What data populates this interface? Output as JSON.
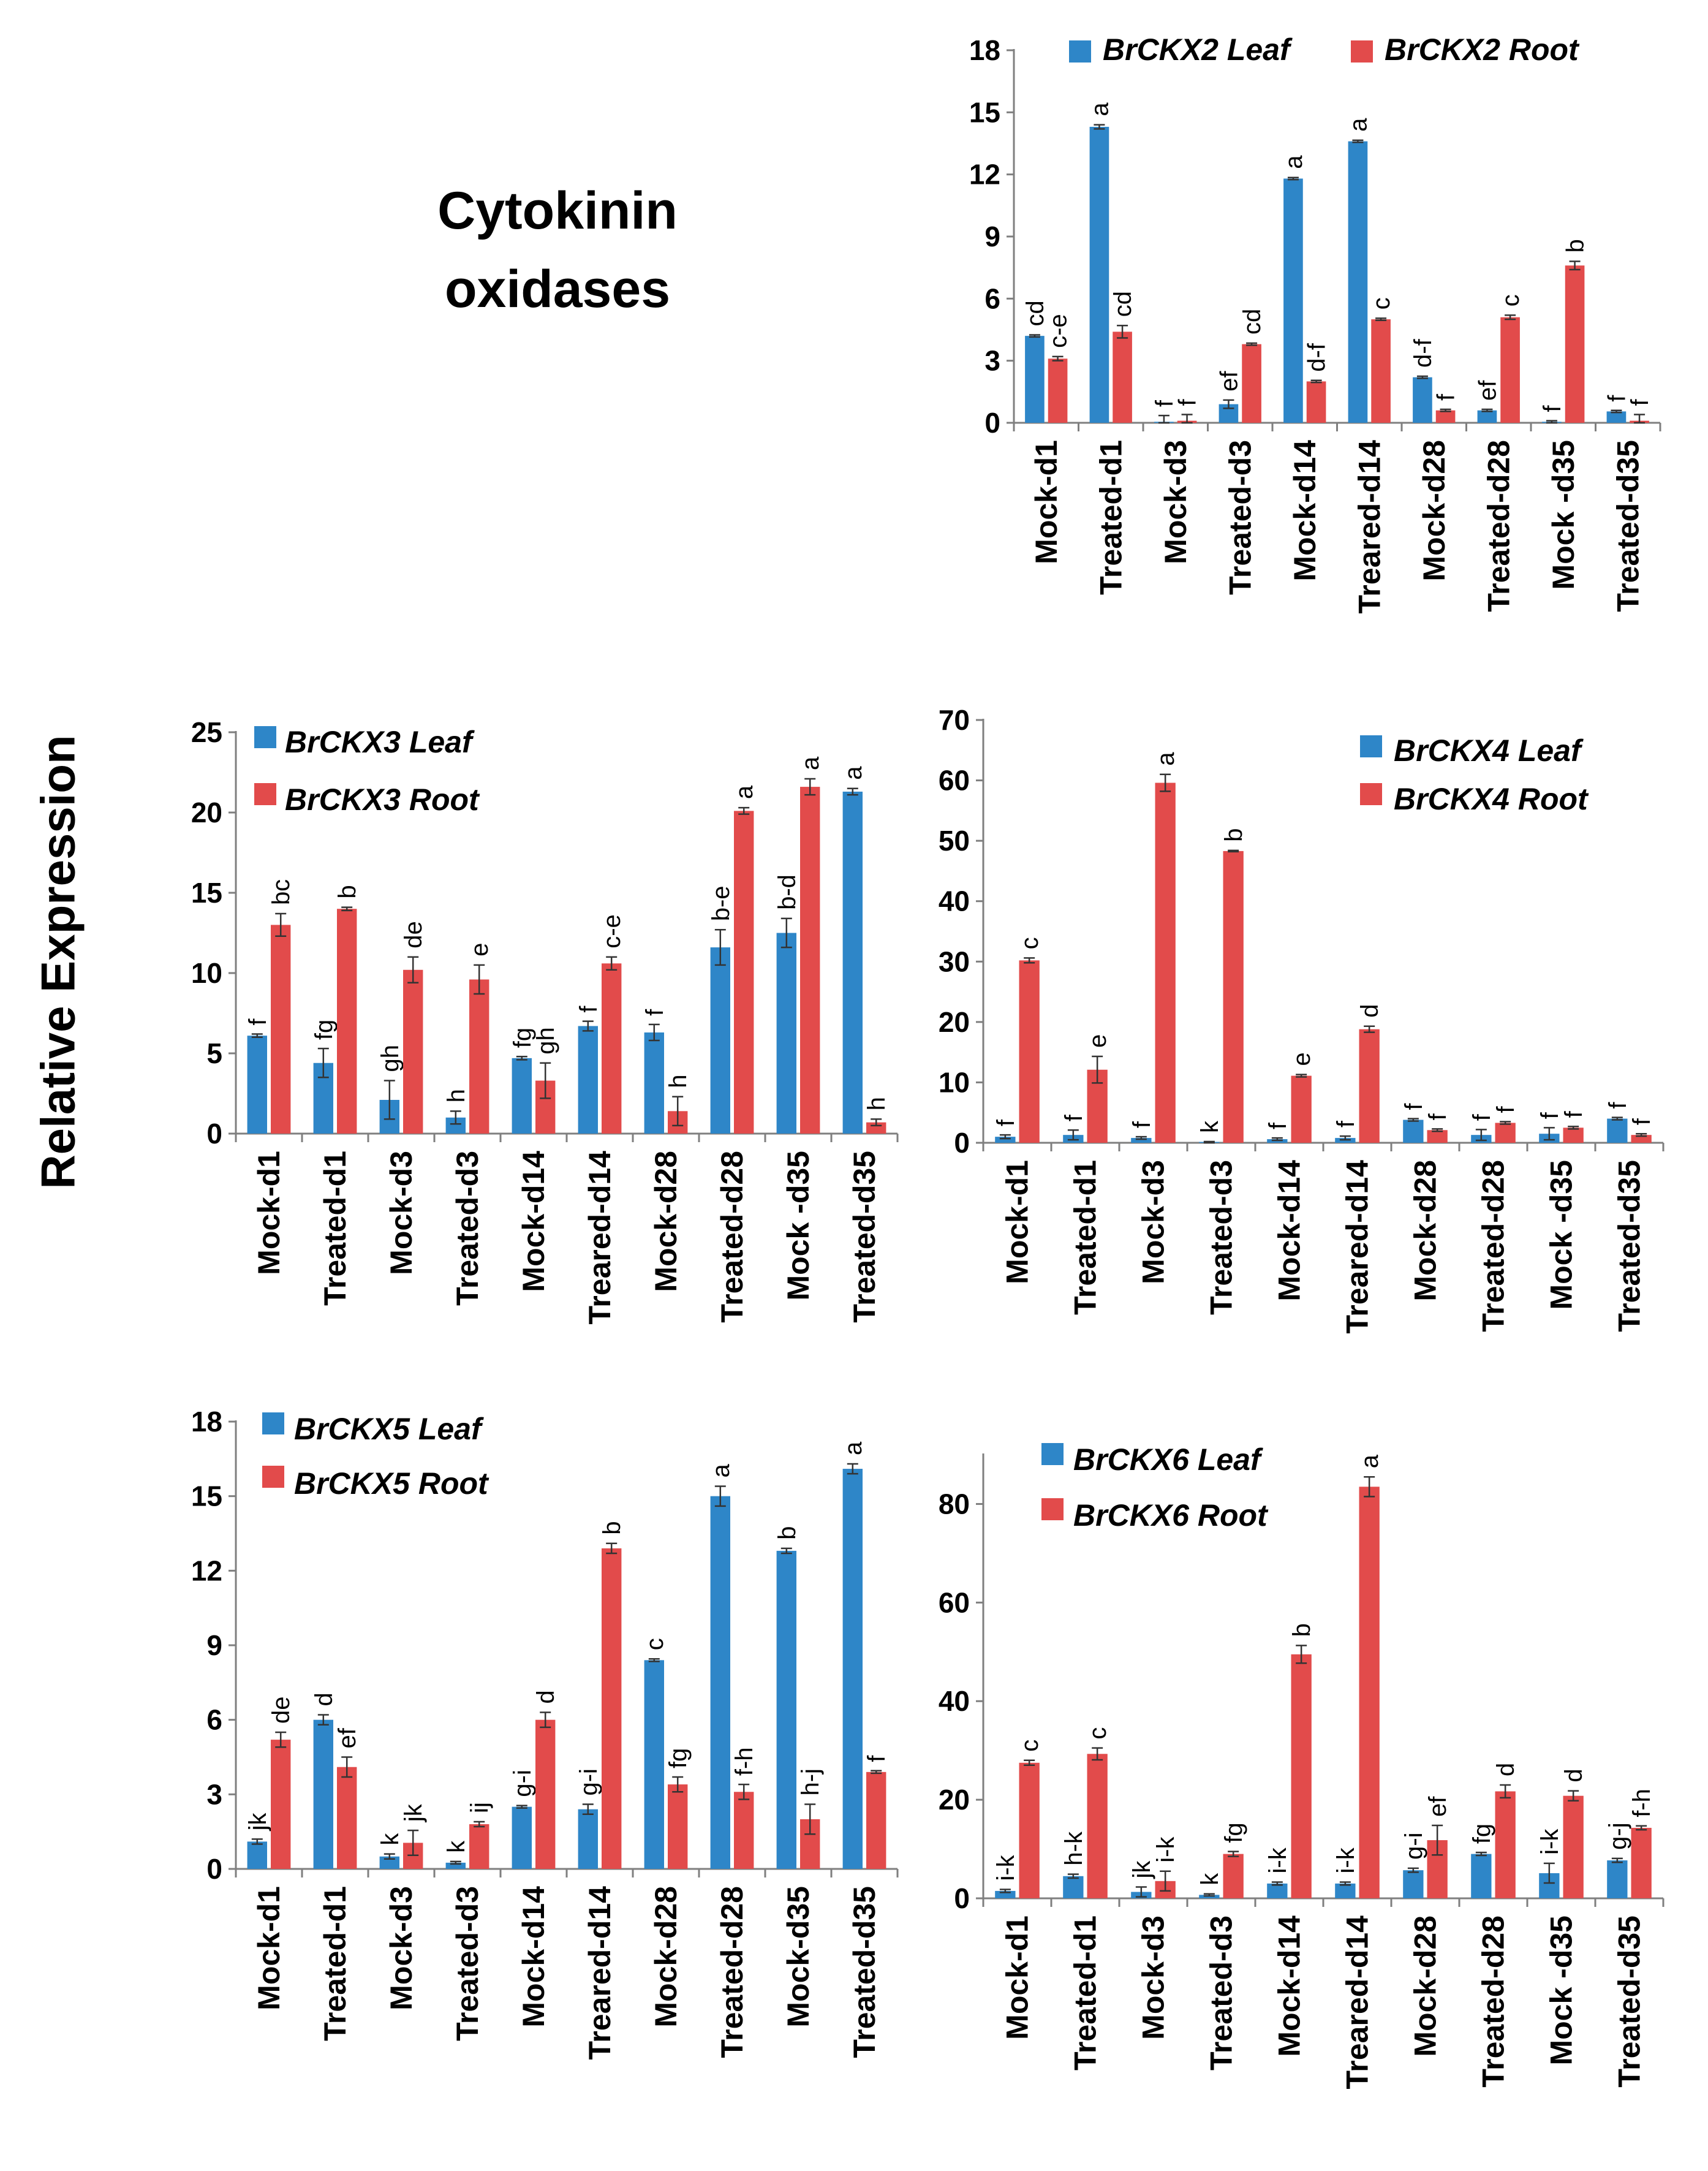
{
  "figure": {
    "title_line1": "Cytokinin",
    "title_line2": "oxidases",
    "ylabel": "Relative Expression"
  },
  "colors": {
    "leaf": "#2E86C8",
    "root": "#E24B4B",
    "axis": "#7f7f7f",
    "error": "#333333"
  },
  "chart_data": [
    {
      "id": "ckx2",
      "type": "bar",
      "title": "",
      "xlabel": "",
      "ylabel": "",
      "ylim": [
        0,
        18
      ],
      "yticks": [
        0,
        3,
        6,
        9,
        12,
        15,
        18
      ],
      "legend_position": "top",
      "categories": [
        "Mock-d1",
        "Treated-d1",
        "Mock-d3",
        "Treated-d3",
        "Mock-d14",
        "Treared-d14",
        "Mock-d28",
        "Treated-d28",
        "Mock -d35",
        "Treated-d35"
      ],
      "series": [
        {
          "name": "BrCKX2 Leaf",
          "values": [
            4.2,
            14.3,
            0.05,
            0.9,
            11.8,
            13.6,
            2.2,
            0.6,
            0.05,
            0.55
          ],
          "errors": [
            0.05,
            0.1,
            0.3,
            0.2,
            0.05,
            0.05,
            0.05,
            0.05,
            0.05,
            0.05
          ],
          "labels": [
            "cd",
            "a",
            "f",
            "ef",
            "a",
            "a",
            "d-f",
            "ef",
            "f",
            "f"
          ]
        },
        {
          "name": "BrCKX2 Root",
          "values": [
            3.1,
            4.4,
            0.1,
            3.8,
            2.0,
            5.0,
            0.6,
            5.1,
            7.6,
            0.1
          ],
          "errors": [
            0.1,
            0.3,
            0.3,
            0.05,
            0.05,
            0.05,
            0.05,
            0.1,
            0.2,
            0.3
          ],
          "labels": [
            "c-e",
            "cd",
            "f",
            "cd",
            "d-f",
            "c",
            "f",
            "c",
            "b",
            "f"
          ]
        }
      ]
    },
    {
      "id": "ckx3",
      "type": "bar",
      "title": "",
      "xlabel": "",
      "ylabel": "",
      "ylim": [
        0,
        25
      ],
      "yticks": [
        0,
        5,
        10,
        15,
        20,
        25
      ],
      "legend_position": "top-left",
      "categories": [
        "Mock-d1",
        "Treated-d1",
        "Mock-d3",
        "Treated-d3",
        "Mock-d14",
        "Treared-d14",
        "Mock-d28",
        "Treated-d28",
        "Mock -d35",
        "Treated-d35"
      ],
      "series": [
        {
          "name": "BrCKX3 Leaf",
          "values": [
            6.1,
            4.4,
            2.1,
            1.0,
            4.7,
            6.7,
            6.3,
            11.6,
            12.5,
            21.3
          ],
          "errors": [
            0.1,
            0.9,
            1.2,
            0.4,
            0.1,
            0.3,
            0.5,
            1.1,
            0.9,
            0.2
          ],
          "labels": [
            "f",
            "fg",
            "gh",
            "h",
            "fg",
            "f",
            "f",
            "b-e",
            "b-d",
            "a"
          ]
        },
        {
          "name": "BrCKX3 Root",
          "values": [
            13.0,
            14.0,
            10.2,
            9.6,
            3.3,
            10.6,
            1.4,
            20.1,
            21.6,
            0.7
          ],
          "errors": [
            0.7,
            0.1,
            0.8,
            0.9,
            1.1,
            0.4,
            0.9,
            0.2,
            0.5,
            0.2
          ],
          "labels": [
            "bc",
            "b",
            "de",
            "e",
            "gh",
            "c-e",
            "h",
            "a",
            "a",
            "h"
          ]
        }
      ]
    },
    {
      "id": "ckx4",
      "type": "bar",
      "title": "",
      "xlabel": "",
      "ylabel": "",
      "ylim": [
        0,
        70
      ],
      "yticks": [
        0,
        10,
        20,
        30,
        40,
        50,
        60,
        70
      ],
      "legend_position": "top-right",
      "categories": [
        "Mock-d1",
        "Treated-d1",
        "Mock-d3",
        "Treated-d3",
        "Mock-d14",
        "Treared-d14",
        "Mock-d28",
        "Treated-d28",
        "Mock -d35",
        "Treated-d35"
      ],
      "series": [
        {
          "name": "BrCKX4 Leaf",
          "values": [
            1.0,
            1.3,
            0.8,
            0.1,
            0.6,
            0.8,
            3.8,
            1.3,
            1.5,
            4.0
          ],
          "errors": [
            0.3,
            0.8,
            0.2,
            0.1,
            0.2,
            0.3,
            0.2,
            0.9,
            1.0,
            0.2
          ],
          "labels": [
            "f",
            "f",
            "f",
            "k",
            "f",
            "f",
            "f",
            "f",
            "f",
            "f"
          ]
        },
        {
          "name": "BrCKX4 Root",
          "values": [
            30.2,
            12.1,
            59.6,
            48.3,
            11.1,
            18.8,
            2.1,
            3.3,
            2.5,
            1.3
          ],
          "errors": [
            0.4,
            2.2,
            1.4,
            0.1,
            0.2,
            0.5,
            0.2,
            0.2,
            0.2,
            0.2
          ],
          "labels": [
            "c",
            "e",
            "a",
            "b",
            "e",
            "d",
            "f",
            "f",
            "f",
            "f"
          ]
        }
      ]
    },
    {
      "id": "ckx5",
      "type": "bar",
      "title": "",
      "xlabel": "",
      "ylabel": "",
      "ylim": [
        0,
        18
      ],
      "yticks": [
        0,
        3,
        6,
        9,
        12,
        15,
        18
      ],
      "legend_position": "top-left",
      "categories": [
        "Mock-d1",
        "Treated-d1",
        "Mock-d3",
        "Treated-d3",
        "Mock-d14",
        "Treared-d14",
        "Mock-d28",
        "Treated-d28",
        "Mock-d35",
        "Treated-d35"
      ],
      "series": [
        {
          "name": "BrCKX5 Leaf",
          "values": [
            1.1,
            6.0,
            0.5,
            0.25,
            2.5,
            2.4,
            8.4,
            15.0,
            12.8,
            16.1
          ],
          "errors": [
            0.1,
            0.2,
            0.1,
            0.05,
            0.05,
            0.2,
            0.05,
            0.4,
            0.1,
            0.2
          ],
          "labels": [
            "jk",
            "d",
            "k",
            "k",
            "g-i",
            "g-i",
            "c",
            "a",
            "b",
            "a"
          ]
        },
        {
          "name": "BrCKX5 Root",
          "values": [
            5.2,
            4.1,
            1.05,
            1.8,
            6.0,
            12.9,
            3.4,
            3.1,
            2.0,
            3.9
          ],
          "errors": [
            0.3,
            0.4,
            0.5,
            0.1,
            0.3,
            0.2,
            0.3,
            0.3,
            0.6,
            0.05
          ],
          "labels": [
            "de",
            "ef",
            "jk",
            "ij",
            "d",
            "b",
            "fg",
            "f-h",
            "h-j",
            "f"
          ]
        }
      ]
    },
    {
      "id": "ckx6",
      "type": "bar",
      "title": "",
      "xlabel": "",
      "ylabel": "",
      "ylim": [
        0,
        90
      ],
      "yticks": [
        0,
        20,
        40,
        60,
        80
      ],
      "legend_position": "top-left",
      "categories": [
        "Mock-d1",
        "Treated-d1",
        "Mock-d3",
        "Treated-d3",
        "Mock-d14",
        "Treared-d14",
        "Mock-d28",
        "Treated-d28",
        "Mock -d35",
        "Treated-d35"
      ],
      "series": [
        {
          "name": "BrCKX6 Leaf",
          "values": [
            1.5,
            4.5,
            1.3,
            0.7,
            3.0,
            3.0,
            5.7,
            9.0,
            5.1,
            7.7
          ],
          "errors": [
            0.3,
            0.4,
            1.0,
            0.2,
            0.3,
            0.3,
            0.4,
            0.3,
            2.0,
            0.4
          ],
          "labels": [
            "i-k",
            "h-k",
            "jk",
            "k",
            "i-k",
            "i-k",
            "g-i",
            "fg",
            "i-k",
            "g-j"
          ]
        },
        {
          "name": "BrCKX6 Root",
          "values": [
            27.5,
            29.3,
            3.5,
            9.0,
            49.5,
            83.5,
            11.8,
            21.7,
            20.8,
            14.3
          ],
          "errors": [
            0.5,
            1.2,
            2.0,
            0.5,
            1.8,
            2.0,
            3.0,
            1.3,
            1.0,
            0.4
          ],
          "labels": [
            "c",
            "c",
            "i-k",
            "fg",
            "b",
            "a",
            "ef",
            "d",
            "d",
            "f-h"
          ]
        }
      ]
    }
  ]
}
